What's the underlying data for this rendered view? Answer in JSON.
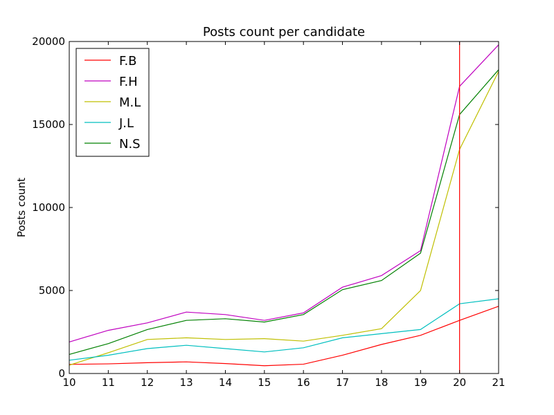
{
  "chart_data": {
    "type": "line",
    "title": "Posts count per candidate",
    "xlabel": "",
    "ylabel": "Posts count",
    "xlim": [
      10,
      21
    ],
    "ylim": [
      0,
      20000
    ],
    "xticks": [
      10,
      11,
      12,
      13,
      14,
      15,
      16,
      17,
      18,
      19,
      20,
      21
    ],
    "yticks": [
      0,
      5000,
      10000,
      15000,
      20000
    ],
    "grid": false,
    "legend_position": "top-left",
    "x": [
      10,
      11,
      12,
      13,
      14,
      15,
      16,
      17,
      18,
      19,
      20,
      21
    ],
    "series": [
      {
        "name": "F.B",
        "color": "#ff0000",
        "values": [
          550,
          580,
          650,
          700,
          600,
          470,
          560,
          1100,
          1750,
          2300,
          3200,
          4050
        ]
      },
      {
        "name": "F.H",
        "color": "#bf00bf",
        "values": [
          1900,
          2600,
          3050,
          3700,
          3550,
          3200,
          3650,
          5200,
          5900,
          7400,
          17300,
          19800
        ]
      },
      {
        "name": "M.L",
        "color": "#bfbf00",
        "values": [
          500,
          1250,
          2050,
          2150,
          2050,
          2100,
          1950,
          2300,
          2700,
          5000,
          13500,
          18200
        ]
      },
      {
        "name": "J.L",
        "color": "#00bfbf",
        "values": [
          800,
          1100,
          1500,
          1700,
          1500,
          1300,
          1550,
          2150,
          2400,
          2650,
          4200,
          4500
        ]
      },
      {
        "name": "N.S",
        "color": "#008000",
        "values": [
          1150,
          1800,
          2650,
          3200,
          3300,
          3100,
          3550,
          5050,
          5600,
          7250,
          15600,
          18300
        ]
      }
    ],
    "annotations": [
      {
        "type": "vertical-line",
        "x": 20,
        "color": "#ff0000"
      }
    ]
  }
}
